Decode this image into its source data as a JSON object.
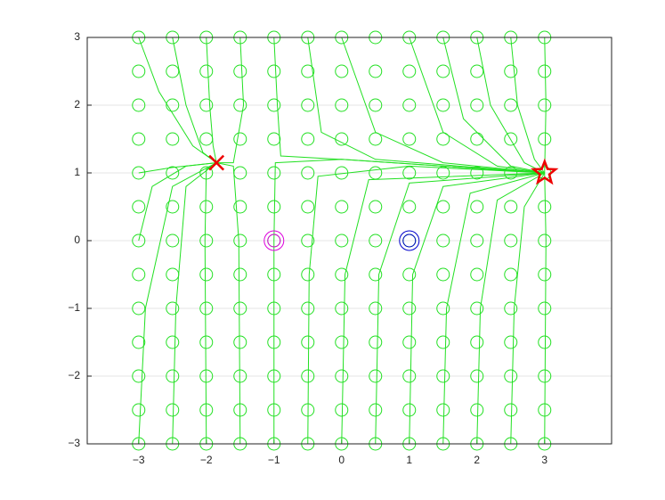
{
  "chart_data": {
    "type": "trajectory",
    "xlim": [
      -3.76,
      3.99
    ],
    "ylim": [
      -3,
      3
    ],
    "xticks": [
      {
        "value": -3,
        "label": "−3"
      },
      {
        "value": -2,
        "label": "−2"
      },
      {
        "value": -1,
        "label": "−1"
      },
      0,
      1,
      2,
      3
    ],
    "yticks": [
      {
        "value": -3,
        "label": "−3"
      },
      {
        "value": -2,
        "label": "−2"
      },
      {
        "value": -1,
        "label": "−1"
      },
      0,
      1,
      2,
      3
    ],
    "ygrid": true,
    "line_color": "#22e022",
    "start_marker_color": "#22e022",
    "start_x": [
      -3,
      -2.5,
      -2,
      -1.5,
      -1,
      -0.5,
      0,
      0.5,
      1,
      1.5,
      2,
      2.5,
      3
    ],
    "start_y": [
      -3,
      -2.5,
      -2,
      -1.5,
      -1,
      -0.5,
      0,
      0.5,
      1,
      1.5,
      2,
      2.5,
      3
    ],
    "series": [
      {
        "x": [
          3,
          3.02,
          3
        ],
        "y": [
          3,
          2,
          1
        ]
      },
      {
        "x": [
          3,
          3.02,
          3
        ],
        "y": [
          -3,
          0,
          1
        ]
      },
      {
        "x": [
          2.5,
          2.55,
          2.7,
          3
        ],
        "y": [
          -3,
          -1,
          0.5,
          1
        ]
      },
      {
        "x": [
          2.5,
          2.6,
          2.85,
          3
        ],
        "y": [
          3,
          2,
          1.2,
          1
        ]
      },
      {
        "x": [
          2,
          2.05,
          2.3,
          3
        ],
        "y": [
          -3,
          -1,
          0.6,
          1
        ]
      },
      {
        "x": [
          2,
          2.2,
          2.7,
          3
        ],
        "y": [
          3,
          2,
          1.15,
          1
        ]
      },
      {
        "x": [
          1.5,
          1.55,
          1.9,
          3
        ],
        "y": [
          -3,
          -1,
          0.7,
          1
        ]
      },
      {
        "x": [
          1.5,
          1.8,
          2.5,
          3
        ],
        "y": [
          3,
          1.8,
          1.1,
          1
        ]
      },
      {
        "x": [
          1,
          1.05,
          1.5,
          3
        ],
        "y": [
          -3,
          -0.5,
          0.8,
          1
        ]
      },
      {
        "x": [
          1,
          1.5,
          2.3,
          3
        ],
        "y": [
          3,
          1.6,
          1.1,
          1
        ]
      },
      {
        "x": [
          0.5,
          0.55,
          1,
          3
        ],
        "y": [
          -3,
          -0.5,
          0.85,
          1
        ]
      },
      {
        "x": [
          0,
          0.05,
          0.4,
          3
        ],
        "y": [
          -3,
          -0.5,
          0.9,
          1
        ]
      },
      {
        "x": [
          0,
          0.5,
          1.5,
          3
        ],
        "y": [
          3,
          1.6,
          1.15,
          1
        ]
      },
      {
        "x": [
          -0.5,
          -0.48,
          -0.35,
          1,
          3
        ],
        "y": [
          -3,
          -0.5,
          0.95,
          1.1,
          1
        ]
      },
      {
        "x": [
          -0.5,
          -0.3,
          0.5,
          3
        ],
        "y": [
          3,
          1.6,
          1.2,
          1
        ]
      },
      {
        "x": [
          -1,
          -1,
          -0.98,
          0,
          3
        ],
        "y": [
          -3,
          0,
          1.15,
          1.2,
          1
        ]
      },
      {
        "x": [
          -1,
          -0.95,
          -0.9,
          0,
          3
        ],
        "y": [
          3,
          2,
          1.25,
          1.2,
          1
        ]
      },
      {
        "x": [
          -1.5,
          -1.52,
          -1.6,
          -1.85
        ],
        "y": [
          -3,
          0,
          1.1,
          1.15
        ]
      },
      {
        "x": [
          -1.5,
          -1.45,
          -1.6,
          -1.85
        ],
        "y": [
          3,
          2,
          1.15,
          1.15
        ]
      },
      {
        "x": [
          -2,
          -2.02,
          -2,
          -1.85
        ],
        "y": [
          -3,
          0,
          1.05,
          1.15
        ]
      },
      {
        "x": [
          -2,
          -1.95,
          -1.9,
          -1.85
        ],
        "y": [
          3,
          2,
          1.4,
          1.15
        ]
      },
      {
        "x": [
          -2.5,
          -2.45,
          -2.3,
          -1.85
        ],
        "y": [
          -3,
          -1,
          0.8,
          1.15
        ]
      },
      {
        "x": [
          -2.5,
          -2.3,
          -2.05,
          -1.85
        ],
        "y": [
          3,
          2,
          1.3,
          1.15
        ]
      },
      {
        "x": [
          -3,
          -2.9,
          -2.5,
          -1.85
        ],
        "y": [
          -3,
          -1,
          0.8,
          1.15
        ]
      },
      {
        "x": [
          -3,
          -2.7,
          -2.2,
          -1.85
        ],
        "y": [
          3,
          2.2,
          1.4,
          1.15
        ]
      },
      {
        "x": [
          -3,
          -2.8,
          -2.3,
          -1.85
        ],
        "y": [
          0,
          0.8,
          1.1,
          1.15
        ]
      },
      {
        "x": [
          -3,
          -2.5,
          -1.85
        ],
        "y": [
          1,
          1.08,
          1.15
        ]
      }
    ],
    "markers": [
      {
        "x": 3,
        "y": 1,
        "shape": "star",
        "color": "#ee0000"
      },
      {
        "x": -1.85,
        "y": 1.15,
        "shape": "cross",
        "color": "#ee0000"
      },
      {
        "x": -1,
        "y": 0,
        "shape": "double-circle",
        "color": "#dd00dd"
      },
      {
        "x": 1,
        "y": 0,
        "shape": "double-circle",
        "color": "#0000cc"
      }
    ]
  }
}
